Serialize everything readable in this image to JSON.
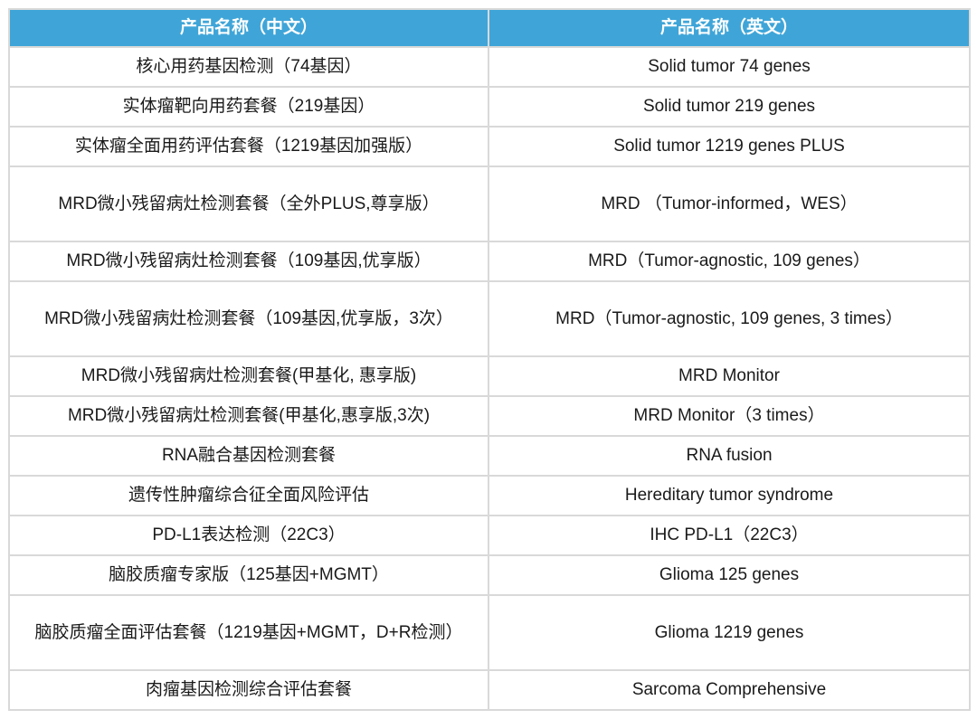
{
  "header": {
    "col_cn": "产品名称（中文）",
    "col_en": "产品名称（英文）",
    "color": "#3fa5d8"
  },
  "rows": [
    {
      "cn": "核心用药基因检测（74基因）",
      "en": "Solid tumor 74 genes"
    },
    {
      "cn": "实体瘤靶向用药套餐（219基因）",
      "en": "Solid tumor 219 genes"
    },
    {
      "cn": "实体瘤全面用药评估套餐（1219基因加强版）",
      "en": "Solid tumor 1219 genes PLUS"
    },
    {
      "cn": "MRD微小残留病灶检测套餐（全外PLUS,尊享版）",
      "en": "MRD （Tumor-informed，WES）"
    },
    {
      "cn": "MRD微小残留病灶检测套餐（109基因,优享版）",
      "en": "MRD（Tumor-agnostic, 109 genes）"
    },
    {
      "cn": "MRD微小残留病灶检测套餐（109基因,优享版，3次）",
      "en": "MRD（Tumor-agnostic, 109 genes, 3 times）"
    },
    {
      "cn": "MRD微小残留病灶检测套餐(甲基化, 惠享版)",
      "en": "MRD Monitor"
    },
    {
      "cn": "MRD微小残留病灶检测套餐(甲基化,惠享版,3次)",
      "en": "MRD Monitor（3 times）"
    },
    {
      "cn": "RNA融合基因检测套餐",
      "en": "RNA fusion"
    },
    {
      "cn": "遗传性肿瘤综合征全面风险评估",
      "en": "Hereditary tumor syndrome"
    },
    {
      "cn": "PD-L1表达检测（22C3）",
      "en": "IHC PD-L1（22C3）"
    },
    {
      "cn": "脑胶质瘤专家版（125基因+MGMT）",
      "en": "Glioma 125 genes"
    },
    {
      "cn": "脑胶质瘤全面评估套餐（1219基因+MGMT，D+R检测）",
      "en": "Glioma 1219 genes"
    },
    {
      "cn": "肉瘤基因检测综合评估套餐",
      "en": "Sarcoma Comprehensive"
    }
  ]
}
